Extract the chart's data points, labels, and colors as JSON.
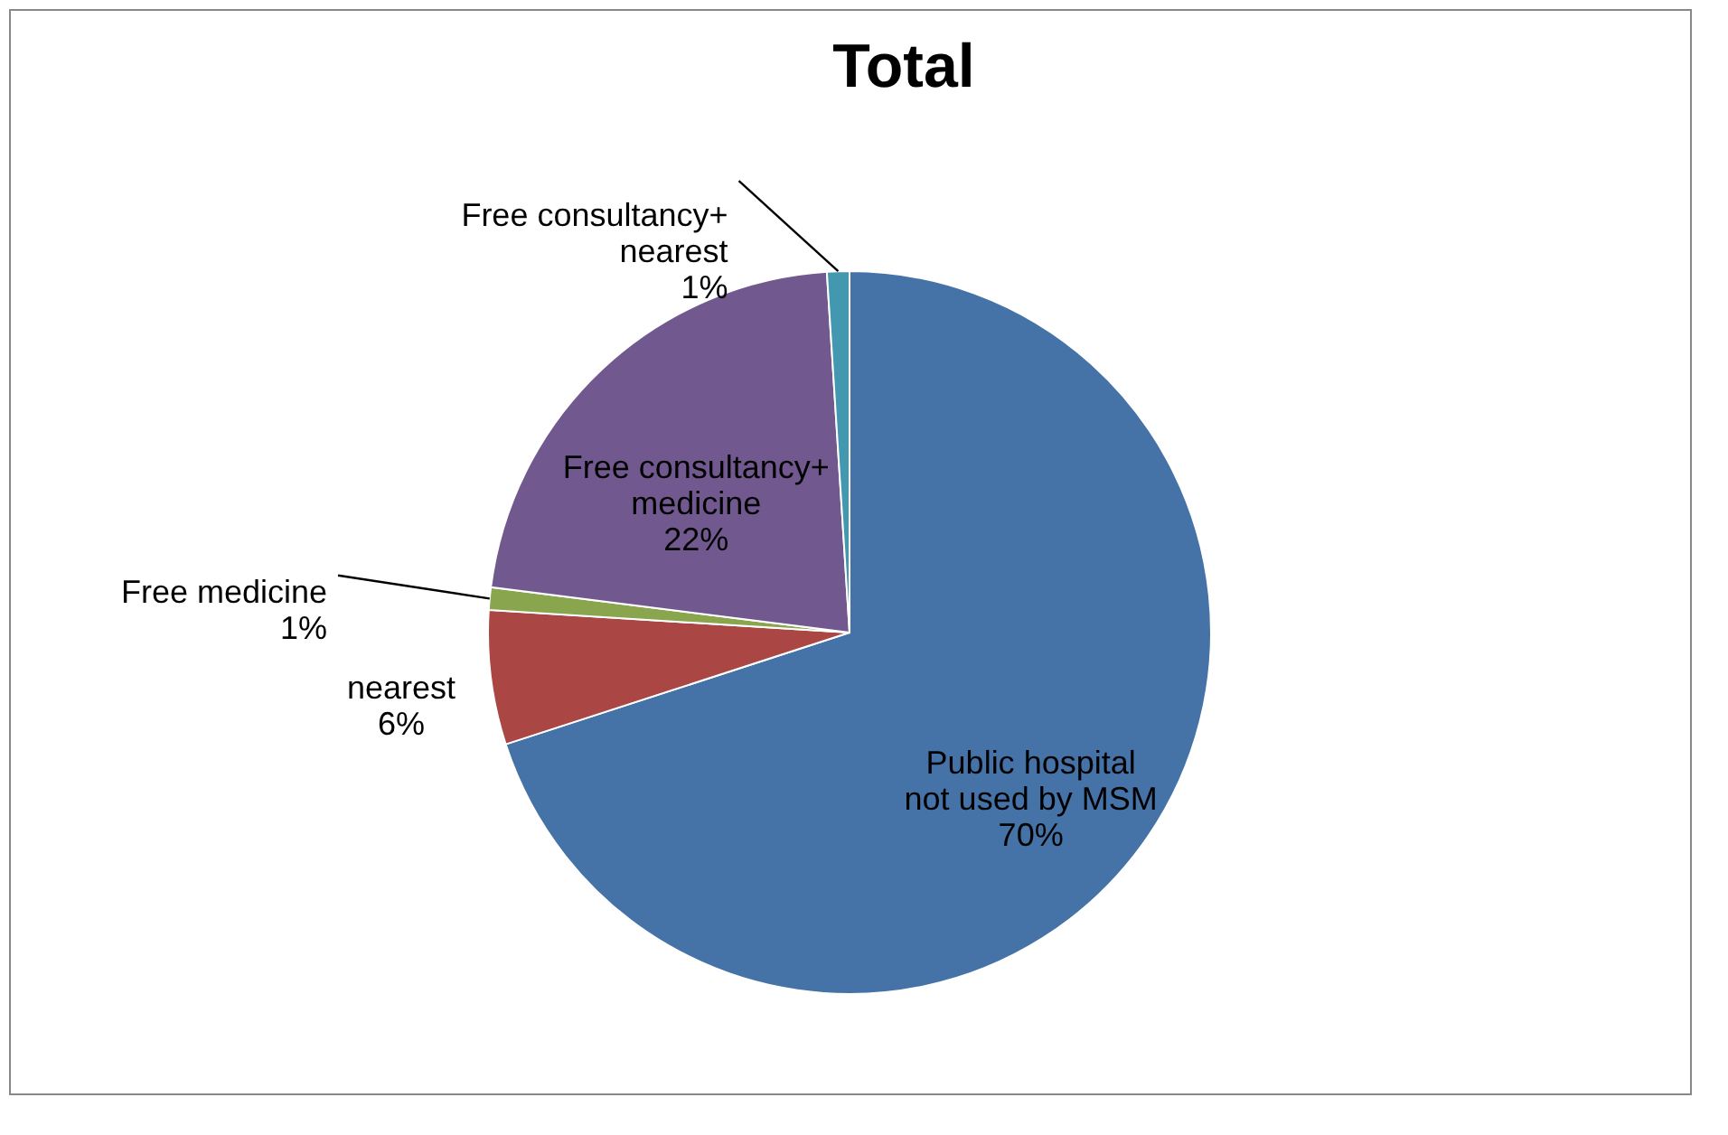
{
  "chart_data": {
    "type": "pie",
    "title": "Total",
    "categories": [
      "Public hospital not used by MSM",
      "nearest",
      "Free medicine",
      "Free consultancy+ medicine",
      "Free consultancy+ nearest"
    ],
    "values": [
      70,
      6,
      1,
      22,
      1
    ],
    "value_labels": [
      "70%",
      "6%",
      "1%",
      "22%",
      "1%"
    ],
    "colors": [
      "#4572a7",
      "#aa4643",
      "#89a54e",
      "#71588f",
      "#4198af"
    ],
    "legend": false
  }
}
